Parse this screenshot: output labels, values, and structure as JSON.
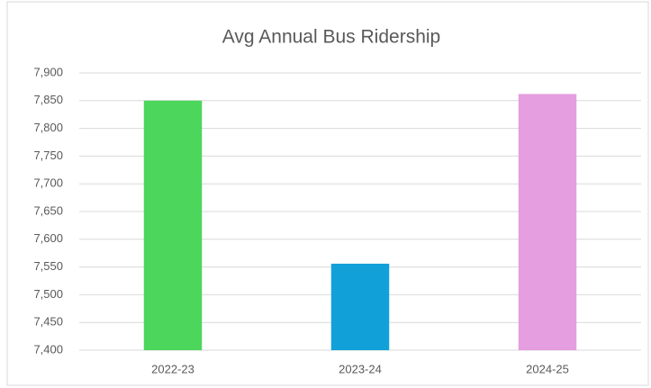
{
  "chart_data": {
    "type": "bar",
    "title": "Avg Annual Bus Ridership",
    "categories": [
      "2022-23",
      "2023-24",
      "2024-25"
    ],
    "values": [
      7850,
      7556,
      7862
    ],
    "colors": [
      "#4cd65c",
      "#12a0d8",
      "#e59edf"
    ],
    "ylim": [
      7400,
      7900
    ],
    "yticks": [
      {
        "value": 7400,
        "label": "7,400"
      },
      {
        "value": 7450,
        "label": "7,450"
      },
      {
        "value": 7500,
        "label": "7,500"
      },
      {
        "value": 7550,
        "label": "7,550"
      },
      {
        "value": 7600,
        "label": "7,600"
      },
      {
        "value": 7650,
        "label": "7,650"
      },
      {
        "value": 7700,
        "label": "7,700"
      },
      {
        "value": 7750,
        "label": "7,750"
      },
      {
        "value": 7800,
        "label": "7,800"
      },
      {
        "value": 7850,
        "label": "7,850"
      },
      {
        "value": 7900,
        "label": "7,900"
      }
    ],
    "grid": true
  }
}
